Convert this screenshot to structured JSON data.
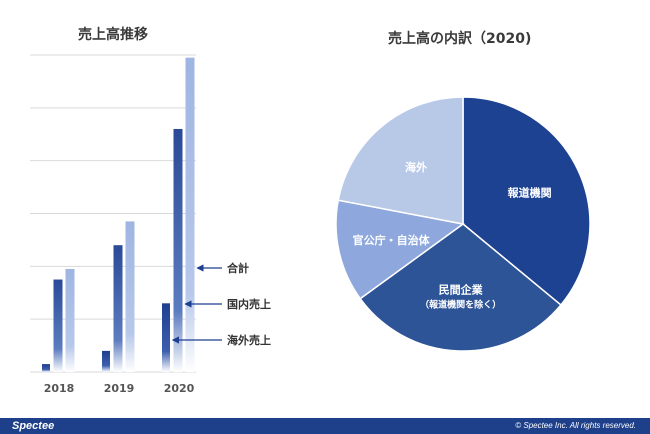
{
  "chart_data": [
    {
      "type": "bar",
      "title": "売上高推移",
      "categories": [
        "2018",
        "2019",
        "2020"
      ],
      "series": [
        {
          "name": "海外売上",
          "values": [
            1.5,
            4,
            13
          ]
        },
        {
          "name": "国内売上",
          "values": [
            17.5,
            24,
            46
          ]
        },
        {
          "name": "合計",
          "values": [
            19.5,
            28.5,
            59.5
          ]
        }
      ],
      "ylim": [
        0,
        60
      ],
      "grid": true,
      "legend": "right",
      "colors": {
        "海外売上": "#1f3f8f",
        "国内売上": "#2f4f9a",
        "合計": "#a3b8e3"
      }
    },
    {
      "type": "pie",
      "title": "売上高の内訳（2020)",
      "slices": [
        {
          "label": "報道機関",
          "value": 36,
          "color": "#1c4291"
        },
        {
          "label": "民間企業",
          "sublabel": "（報道機関を除く）",
          "value": 29,
          "color": "#2e5498"
        },
        {
          "label": "官公庁・自治体",
          "value": 13,
          "color": "#8ea8dd"
        },
        {
          "label": "海外",
          "value": 22,
          "color": "#b8c9e8"
        }
      ]
    }
  ],
  "footer": {
    "brand": "Spectee",
    "copyright": "© Spectee Inc. All rights reserved."
  }
}
